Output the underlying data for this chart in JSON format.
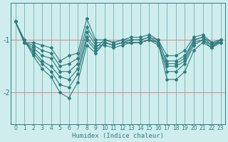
{
  "title": "",
  "xlabel": "Humidex (Indice chaleur)",
  "ylabel": "",
  "bg_color": "#d0eded",
  "line_color": "#2e7d7d",
  "grid_h_color": "#e08080",
  "grid_v_color": "#7abcbc",
  "yticks": [
    -1,
    -2
  ],
  "ylim": [
    -2.6,
    -0.3
  ],
  "xlim": [
    -0.5,
    23.5
  ],
  "xticks": [
    0,
    1,
    2,
    3,
    4,
    5,
    6,
    7,
    8,
    9,
    10,
    11,
    12,
    13,
    14,
    15,
    16,
    17,
    18,
    19,
    20,
    21,
    22,
    23
  ],
  "series": [
    [
      -0.65,
      -1.05,
      -1.05,
      -1.1,
      -1.15,
      -1.4,
      -1.3,
      -1.25,
      -0.6,
      -1.0,
      -1.0,
      -1.05,
      -1.0,
      -0.95,
      -0.95,
      -0.9,
      -1.0,
      -1.3,
      -1.3,
      -1.2,
      -0.95,
      -0.9,
      -1.05,
      -1.05
    ],
    [
      -0.65,
      -1.05,
      -1.1,
      -1.2,
      -1.25,
      -1.5,
      -1.45,
      -1.35,
      -0.75,
      -1.05,
      -1.05,
      -1.1,
      -1.05,
      -1.0,
      -1.0,
      -0.95,
      -1.05,
      -1.4,
      -1.4,
      -1.3,
      -1.0,
      -0.95,
      -1.1,
      -1.05
    ],
    [
      -0.65,
      -1.05,
      -1.15,
      -1.3,
      -1.35,
      -1.6,
      -1.6,
      -1.45,
      -0.85,
      -1.1,
      -1.1,
      -1.15,
      -1.1,
      -1.05,
      -1.05,
      -1.0,
      -1.1,
      -1.5,
      -1.5,
      -1.4,
      -1.05,
      -1.0,
      -1.15,
      -1.05
    ],
    [
      -0.65,
      -1.05,
      -1.2,
      -1.4,
      -1.5,
      -1.7,
      -1.75,
      -1.55,
      -0.95,
      -1.15,
      -1.0,
      -1.05,
      -1.0,
      -1.0,
      -1.0,
      -0.95,
      -1.0,
      -1.45,
      -1.45,
      -1.35,
      -1.0,
      -0.95,
      -1.05,
      -1.0
    ],
    [
      -0.65,
      -1.0,
      -1.25,
      -1.45,
      -1.6,
      -1.85,
      -1.9,
      -1.65,
      -1.0,
      -1.2,
      -1.05,
      -1.1,
      -1.05,
      -1.05,
      -1.05,
      -1.0,
      -1.05,
      -1.6,
      -1.6,
      -1.45,
      -1.1,
      -1.0,
      -1.1,
      -1.0
    ],
    [
      -0.65,
      -1.0,
      -1.3,
      -1.55,
      -1.7,
      -2.0,
      -2.1,
      -1.8,
      -1.1,
      -1.25,
      -1.05,
      -1.1,
      -1.05,
      -1.05,
      -1.05,
      -1.0,
      -1.05,
      -1.75,
      -1.75,
      -1.6,
      -1.2,
      -1.05,
      -1.15,
      -1.0
    ]
  ],
  "marker": "D",
  "marker_size": 2,
  "linewidth": 0.8
}
